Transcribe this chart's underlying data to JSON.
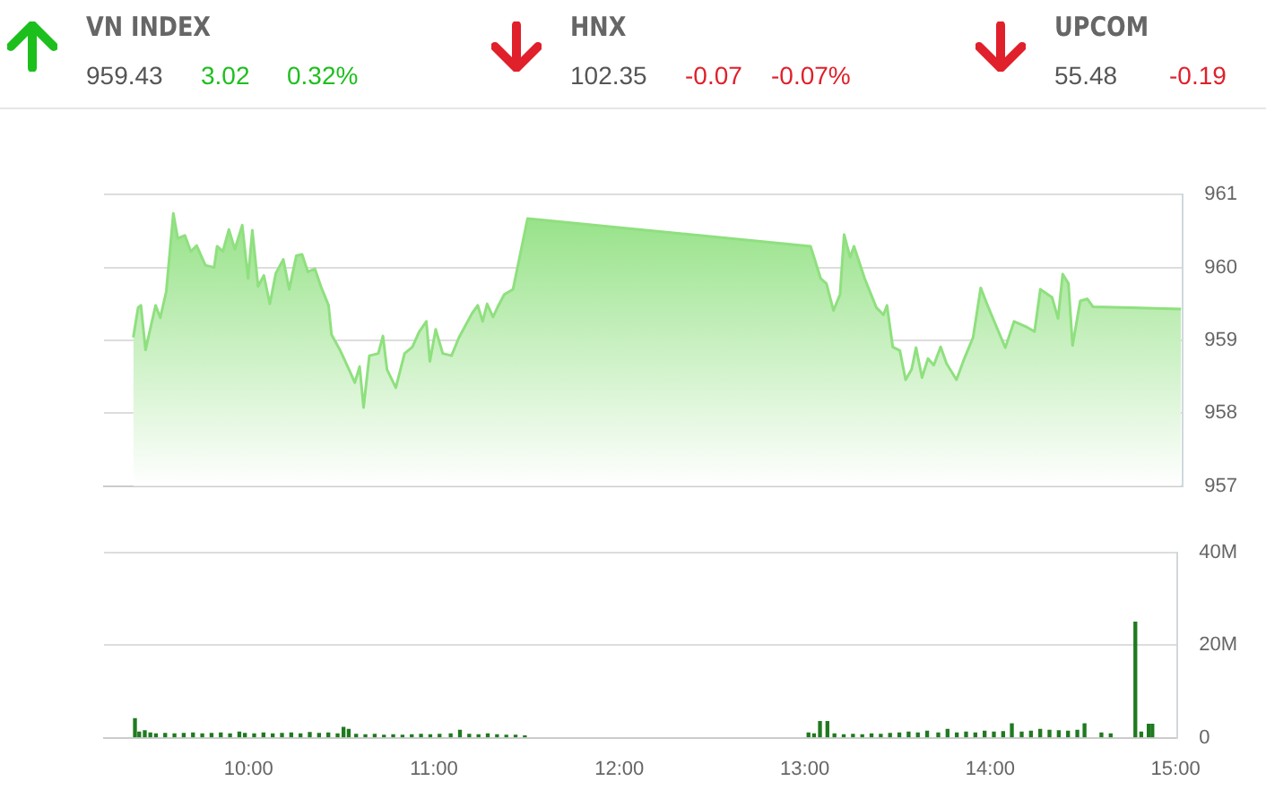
{
  "chart_data": [
    {
      "type": "other",
      "data_labels": true,
      "categories": [
        "VN INDEX",
        "HNX",
        "UPCOM"
      ],
      "series": [
        {
          "values": [
            959.43,
            102.35,
            55.48
          ],
          "color": "#555555"
        },
        {
          "values": [
            3.02,
            -0.07,
            -0.19
          ],
          "colors": [
            "#1dbf1d",
            "#e0202a",
            "#e0202a"
          ]
        },
        {
          "values": [
            0.32,
            -0.07,
            null
          ],
          "value_labels": [
            "0.32%",
            "-0.07%",
            null
          ],
          "colors": [
            "#1dbf1d",
            "#e0202a",
            null
          ]
        }
      ]
    },
    {
      "type": "area",
      "xlim": [
        9.22,
        15.01
      ],
      "ylim": [
        957,
        961
      ],
      "yticks": [
        957,
        958,
        959,
        960,
        961
      ],
      "grid": "y",
      "tick_labels": "y",
      "series": [
        {
          "color": "#8fe07f",
          "x": [
            9.377,
            9.403,
            9.418,
            9.443,
            9.465,
            9.497,
            9.522,
            9.554,
            9.592,
            9.616,
            9.654,
            9.686,
            9.717,
            9.764,
            9.811,
            9.827,
            9.858,
            9.89,
            9.922,
            9.962,
            9.993,
            10.016,
            10.047,
            10.078,
            10.11,
            10.142,
            10.182,
            10.214,
            10.252,
            10.283,
            10.314,
            10.352,
            10.384,
            10.425,
            10.441,
            10.488,
            10.535,
            10.566,
            10.592,
            10.613,
            10.644,
            10.692,
            10.717,
            10.739,
            10.786,
            10.833,
            10.875,
            10.912,
            10.95,
            10.969,
            11.0,
            11.038,
            11.085,
            11.125,
            11.195,
            11.226,
            11.252,
            11.276,
            11.308,
            11.337,
            11.368,
            11.415,
            11.493,
            13.012,
            13.066,
            13.097,
            13.135,
            13.17,
            13.192,
            13.224,
            13.245,
            13.302,
            13.365,
            13.403,
            13.422,
            13.453,
            13.491,
            13.522,
            13.554,
            13.578,
            13.61,
            13.642,
            13.673,
            13.71,
            13.742,
            13.795,
            13.837,
            13.884,
            13.925,
            13.962,
            14.009,
            14.057,
            14.104,
            14.167,
            14.214,
            14.245,
            14.308,
            14.34,
            14.365,
            14.396,
            14.418,
            14.459,
            14.497,
            14.528,
            15.0
          ],
          "values": [
            959.04,
            959.45,
            959.48,
            958.87,
            959.12,
            959.48,
            959.31,
            959.67,
            960.74,
            960.4,
            960.44,
            960.22,
            960.3,
            960.03,
            960.0,
            960.29,
            960.22,
            960.52,
            960.25,
            960.58,
            959.85,
            960.51,
            959.74,
            959.89,
            959.5,
            959.92,
            960.11,
            959.7,
            960.16,
            960.18,
            959.94,
            959.98,
            959.74,
            959.48,
            959.08,
            958.86,
            958.6,
            958.42,
            958.64,
            958.08,
            958.79,
            958.82,
            959.06,
            958.6,
            958.35,
            958.82,
            958.91,
            959.12,
            959.26,
            958.71,
            959.15,
            958.82,
            958.79,
            959.04,
            959.37,
            959.48,
            959.26,
            959.5,
            959.32,
            959.48,
            959.63,
            959.7,
            960.67,
            960.29,
            959.85,
            959.78,
            959.41,
            959.63,
            960.45,
            960.14,
            960.29,
            959.85,
            959.45,
            959.35,
            959.48,
            958.91,
            958.86,
            958.46,
            958.6,
            958.9,
            958.49,
            958.75,
            958.66,
            958.91,
            958.68,
            958.46,
            958.75,
            959.04,
            959.72,
            959.48,
            959.19,
            958.9,
            959.26,
            959.19,
            959.12,
            959.7,
            959.59,
            959.3,
            959.91,
            959.78,
            958.93,
            959.54,
            959.57,
            959.46,
            959.43
          ]
        }
      ]
    },
    {
      "type": "bar",
      "xlim": [
        9.22,
        15.01
      ],
      "xticks": [
        {
          "value": 10,
          "label": "10:00"
        },
        {
          "value": 11,
          "label": "11:00"
        },
        {
          "value": 12,
          "label": "12:00"
        },
        {
          "value": 13,
          "label": "13:00"
        },
        {
          "value": 14,
          "label": "14:00"
        },
        {
          "value": 15,
          "label": "15:00"
        }
      ],
      "ylim": [
        0,
        40
      ],
      "yticks": [
        {
          "value": 0,
          "label": "0"
        },
        {
          "value": 20,
          "label": "20M"
        },
        {
          "value": 40,
          "label": "40M"
        }
      ],
      "grid": "y",
      "series": [
        {
          "color": "#1f7a1f",
          "x": [
            9.387,
            9.41,
            9.44,
            9.47,
            9.5,
            9.55,
            9.6,
            9.65,
            9.7,
            9.75,
            9.8,
            9.85,
            9.9,
            9.95,
            9.98,
            10.03,
            10.08,
            10.13,
            10.18,
            10.23,
            10.28,
            10.33,
            10.38,
            10.43,
            10.48,
            10.512,
            10.54,
            10.58,
            10.63,
            10.68,
            10.73,
            10.78,
            10.83,
            10.88,
            10.93,
            10.98,
            11.03,
            11.09,
            11.14,
            11.19,
            11.24,
            11.29,
            11.34,
            11.39,
            11.44,
            11.49,
            13.02,
            13.05,
            13.082,
            13.122,
            13.16,
            13.21,
            13.26,
            13.31,
            13.36,
            13.41,
            13.46,
            13.51,
            13.56,
            13.61,
            13.66,
            13.72,
            13.77,
            13.82,
            13.87,
            13.92,
            13.97,
            14.02,
            14.07,
            14.117,
            14.17,
            14.22,
            14.27,
            14.32,
            14.37,
            14.42,
            14.47,
            14.509,
            14.6,
            14.65,
            14.783,
            14.815,
            14.855,
            14.875
          ],
          "values": [
            4.1,
            1.2,
            1.5,
            1.0,
            0.8,
            0.9,
            0.8,
            0.9,
            1.0,
            0.8,
            0.9,
            1.0,
            0.8,
            1.2,
            0.9,
            0.8,
            1.0,
            0.8,
            0.9,
            1.0,
            0.8,
            1.1,
            0.9,
            1.0,
            0.8,
            2.2,
            1.8,
            0.7,
            0.6,
            0.7,
            0.5,
            0.6,
            0.5,
            0.6,
            0.7,
            0.6,
            0.7,
            0.8,
            1.6,
            0.7,
            0.6,
            0.8,
            0.6,
            0.5,
            0.5,
            0.4,
            1.0,
            0.8,
            3.5,
            3.5,
            0.8,
            0.6,
            0.7,
            0.6,
            0.8,
            0.7,
            0.9,
            1.0,
            1.2,
            1.0,
            1.4,
            1.0,
            1.8,
            1.0,
            1.2,
            1.0,
            1.4,
            1.2,
            1.3,
            3.0,
            1.2,
            1.4,
            1.8,
            1.6,
            1.5,
            1.4,
            1.6,
            3.0,
            1.0,
            0.8,
            25,
            1.2,
            2.9,
            2.9
          ]
        }
      ]
    }
  ]
}
